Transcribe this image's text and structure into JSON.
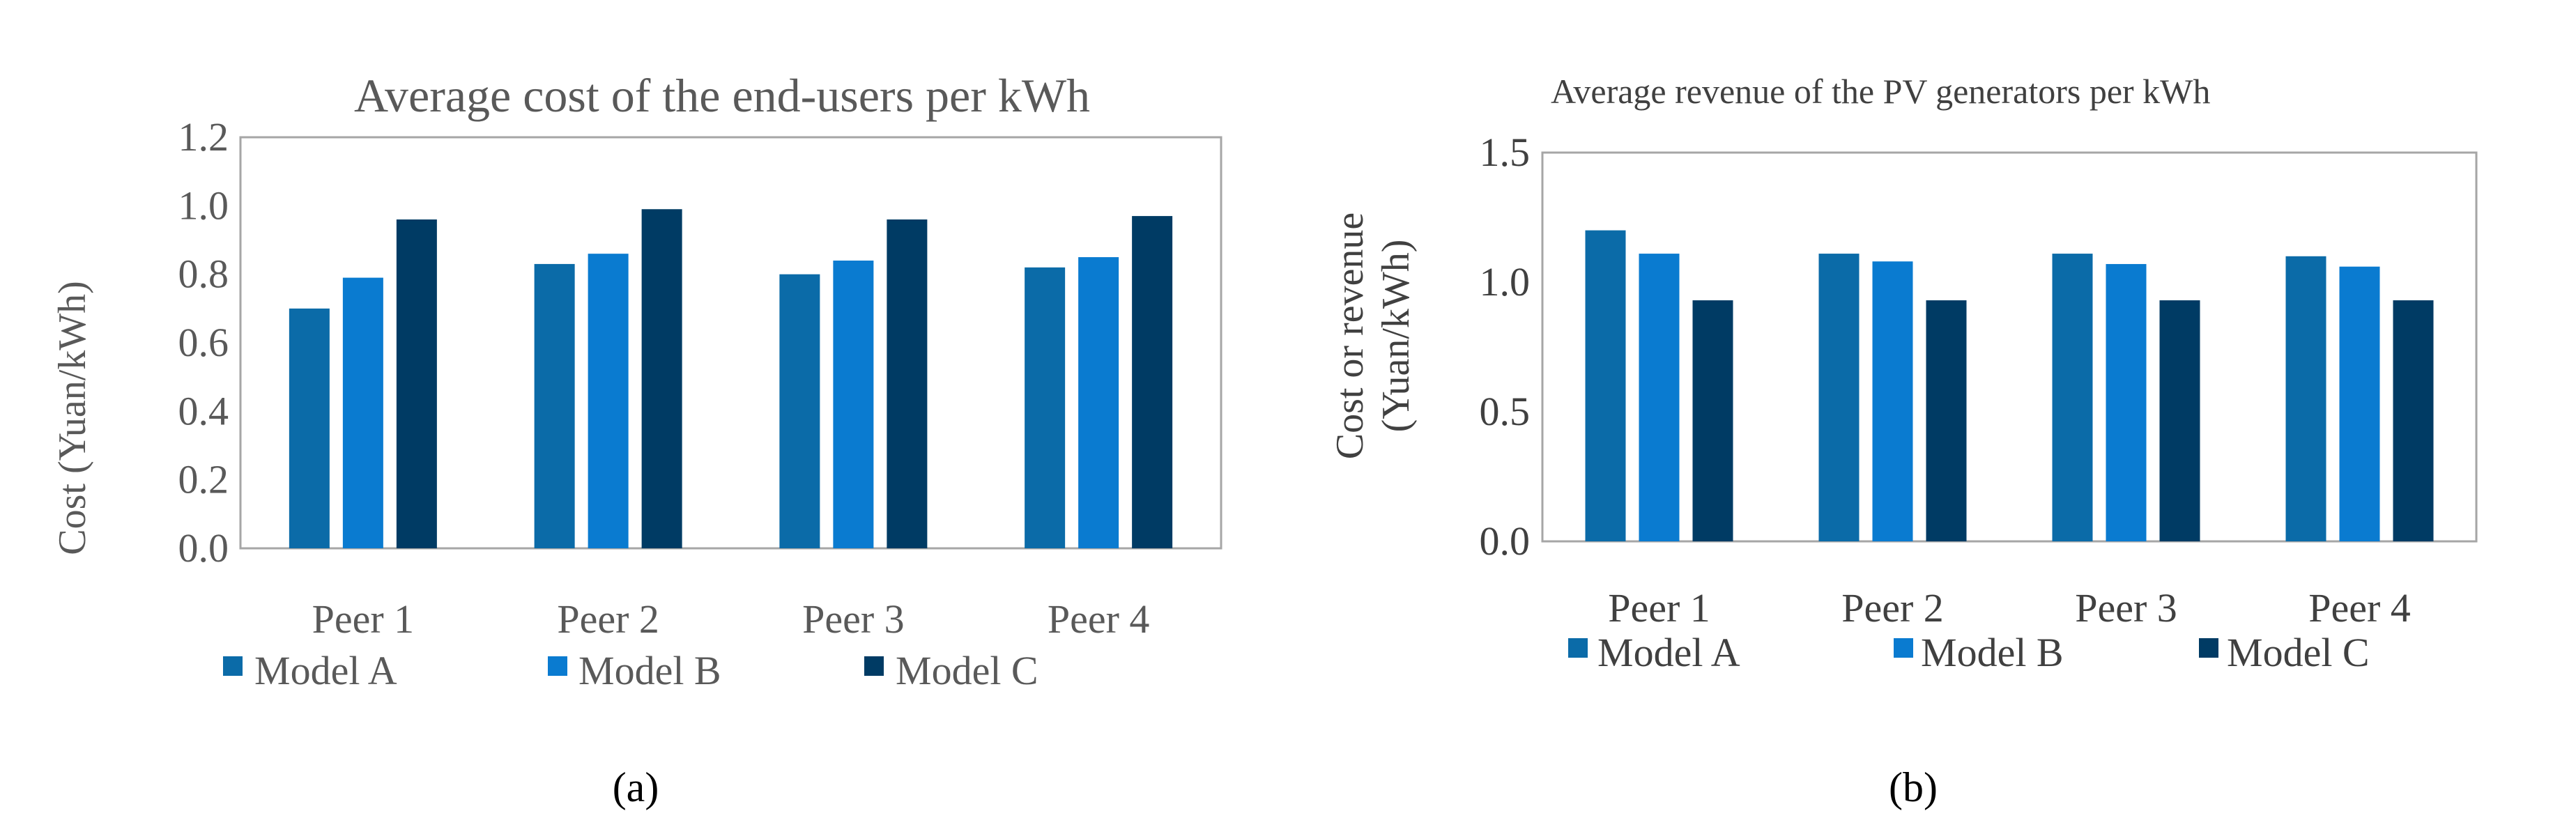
{
  "figure": {
    "panel_labels": [
      "(a)",
      "(b)"
    ]
  },
  "colors": {
    "model_a": "#0B6BA8",
    "model_b": "#0A7BD0",
    "model_c": "#003B64",
    "axis_frame": "#A6A6A6",
    "text": "#404040"
  },
  "chart_data": [
    {
      "type": "bar",
      "title": "Average cost of the end-users per kWh",
      "xlabel": "",
      "ylabel": "Cost (Yuan/kWh)",
      "categories": [
        "Peer 1",
        "Peer 2",
        "Peer 3",
        "Peer 4"
      ],
      "ylim": [
        0,
        1.2
      ],
      "yticks": [
        0.0,
        0.2,
        0.4,
        0.6,
        0.8,
        1.0,
        1.2
      ],
      "ytick_labels": [
        "0.0",
        "0.2",
        "0.4",
        "0.6",
        "0.8",
        "1.0",
        "1.2"
      ],
      "grid": false,
      "legend_position": "bottom",
      "series": [
        {
          "name": "Model A",
          "values": [
            0.7,
            0.83,
            0.8,
            0.82
          ]
        },
        {
          "name": "Model B",
          "values": [
            0.79,
            0.86,
            0.84,
            0.85
          ]
        },
        {
          "name": "Model C",
          "values": [
            0.96,
            0.99,
            0.96,
            0.97
          ]
        }
      ]
    },
    {
      "type": "bar",
      "title": "Average revenue of the PV generators per kWh",
      "xlabel": "",
      "ylabel_lines": [
        "Cost or revenue",
        "(Yuan/kWh)"
      ],
      "categories": [
        "Peer 1",
        "Peer 2",
        "Peer 3",
        "Peer 4"
      ],
      "ylim": [
        0,
        1.5
      ],
      "yticks": [
        0.0,
        0.5,
        1.0,
        1.5
      ],
      "ytick_labels": [
        "0.0",
        "0.5",
        "1.0",
        "1.5"
      ],
      "grid": false,
      "legend_position": "bottom",
      "series": [
        {
          "name": "Model A",
          "values": [
            1.2,
            1.11,
            1.11,
            1.1
          ]
        },
        {
          "name": "Model B",
          "values": [
            1.11,
            1.08,
            1.07,
            1.06
          ]
        },
        {
          "name": "Model C",
          "values": [
            0.93,
            0.93,
            0.93,
            0.93
          ]
        }
      ]
    }
  ]
}
